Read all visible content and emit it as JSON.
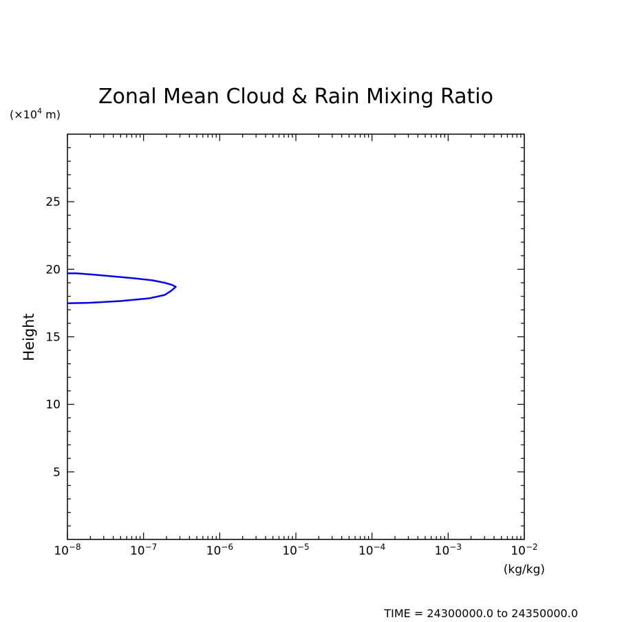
{
  "chart_data": {
    "type": "line",
    "title": "Zonal Mean Cloud & Rain Mixing Ratio",
    "xlabel": "(kg/kg)",
    "ylabel": "Height",
    "y_units": "(×10⁴ m)",
    "y_units_prefix": "(×10",
    "y_units_exp": "4",
    "y_units_suffix": " m)",
    "x_scale": "log",
    "xlim": [
      1e-08,
      0.01
    ],
    "ylim": [
      0,
      30
    ],
    "x_ticks": [
      {
        "base": "10",
        "exp": "−8",
        "value": 1e-08
      },
      {
        "base": "10",
        "exp": "−7",
        "value": 1e-07
      },
      {
        "base": "10",
        "exp": "−6",
        "value": 1e-06
      },
      {
        "base": "10",
        "exp": "−5",
        "value": 1e-05
      },
      {
        "base": "10",
        "exp": "−4",
        "value": 0.0001
      },
      {
        "base": "10",
        "exp": "−3",
        "value": 0.001
      },
      {
        "base": "10",
        "exp": "−2",
        "value": 0.01
      }
    ],
    "y_ticks": [
      {
        "label": "5",
        "value": 5
      },
      {
        "label": "10",
        "value": 10
      },
      {
        "label": "15",
        "value": 15
      },
      {
        "label": "20",
        "value": 20
      },
      {
        "label": "25",
        "value": 25
      }
    ],
    "grid": false,
    "series": [
      {
        "color": "#0000ee",
        "points": [
          [
            1e-08,
            19.7
          ],
          [
            1.3e-08,
            19.7
          ],
          [
            2e-08,
            19.62
          ],
          [
            3.5e-08,
            19.5
          ],
          [
            7e-08,
            19.35
          ],
          [
            1.3e-07,
            19.18
          ],
          [
            1.9e-07,
            19.0
          ],
          [
            2.35e-07,
            18.85
          ],
          [
            2.65e-07,
            18.7
          ],
          [
            2.3e-07,
            18.4
          ],
          [
            1.9e-07,
            18.1
          ],
          [
            1.2e-07,
            17.85
          ],
          [
            5e-08,
            17.65
          ],
          [
            2e-08,
            17.52
          ],
          [
            1e-08,
            17.48
          ]
        ]
      }
    ],
    "footer": "TIME = 24300000.0 to 24350000.0"
  }
}
